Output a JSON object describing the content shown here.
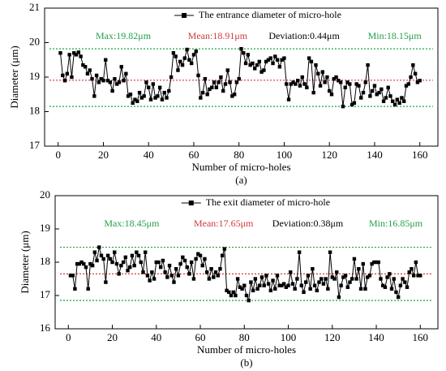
{
  "chart_data": [
    {
      "type": "line",
      "title": "The entrance diameter of micro-hole",
      "caption": "(a)",
      "x_label": "Number of micro-holes",
      "y_label": "Diameter (μm)",
      "xlim": [
        -6,
        168
      ],
      "xticks": [
        0,
        20,
        40,
        60,
        80,
        100,
        120,
        140,
        160
      ],
      "ylim": [
        17,
        21
      ],
      "yticks": [
        17,
        18,
        19,
        20,
        21
      ],
      "annotations": [
        {
          "text": "Max:19.82μm",
          "color": "#22a04a"
        },
        {
          "text": "Mean:18.91μm",
          "color": "#d03a3a"
        },
        {
          "text": "Deviation:0.44μm",
          "color": "#000000"
        },
        {
          "text": "Min:18.15μm",
          "color": "#22a04a"
        }
      ],
      "reference_lines": [
        {
          "value": 19.82,
          "color": "#22a04a"
        },
        {
          "value": 18.91,
          "color": "#d03a3a"
        },
        {
          "value": 18.15,
          "color": "#22a04a"
        }
      ],
      "x": [
        1,
        2,
        3,
        4,
        5,
        6,
        7,
        8,
        9,
        10,
        11,
        12,
        13,
        14,
        15,
        16,
        17,
        18,
        19,
        20,
        21,
        22,
        23,
        24,
        25,
        26,
        27,
        28,
        29,
        30,
        31,
        32,
        33,
        34,
        35,
        36,
        37,
        38,
        39,
        40,
        41,
        42,
        43,
        44,
        45,
        46,
        47,
        48,
        49,
        50,
        51,
        52,
        53,
        54,
        55,
        56,
        57,
        58,
        59,
        60,
        61,
        62,
        63,
        64,
        65,
        66,
        67,
        68,
        69,
        70,
        71,
        72,
        73,
        74,
        75,
        76,
        77,
        78,
        79,
        80,
        81,
        82,
        83,
        84,
        85,
        86,
        87,
        88,
        89,
        90,
        91,
        92,
        93,
        94,
        95,
        96,
        97,
        98,
        99,
        100,
        101,
        102,
        103,
        104,
        105,
        106,
        107,
        108,
        109,
        110,
        111,
        112,
        113,
        114,
        115,
        116,
        117,
        118,
        119,
        120,
        121,
        122,
        123,
        124,
        125,
        126,
        127,
        128,
        129,
        130,
        131,
        132,
        133,
        134,
        135,
        136,
        137,
        138,
        139,
        140,
        141,
        142,
        143,
        144,
        145,
        146,
        147,
        148,
        149,
        150,
        151,
        152,
        153,
        154,
        155,
        156,
        157,
        158,
        159,
        160
      ],
      "series": [
        {
          "name": "The entrance diameter of micro-hole",
          "color": "#000000",
          "values": [
            19.7,
            19.05,
            18.9,
            19.1,
            19.65,
            19.0,
            19.7,
            19.65,
            19.72,
            19.6,
            19.35,
            19.3,
            19.1,
            19.2,
            18.95,
            18.45,
            19.05,
            18.85,
            18.95,
            18.9,
            19.5,
            18.9,
            18.85,
            18.6,
            18.95,
            18.8,
            18.85,
            19.3,
            18.9,
            19.1,
            18.45,
            18.5,
            18.25,
            18.35,
            18.3,
            18.55,
            18.4,
            18.45,
            18.85,
            18.7,
            18.35,
            18.8,
            18.4,
            18.45,
            18.7,
            18.35,
            18.55,
            18.4,
            18.6,
            19.0,
            19.7,
            19.6,
            19.2,
            19.45,
            19.35,
            19.55,
            19.8,
            19.5,
            19.4,
            19.65,
            19.75,
            19.05,
            18.4,
            18.55,
            18.95,
            18.5,
            18.65,
            18.7,
            18.85,
            18.7,
            18.85,
            19.0,
            18.6,
            18.8,
            19.2,
            18.85,
            18.45,
            18.5,
            18.85,
            18.95,
            19.82,
            19.7,
            19.4,
            19.65,
            19.35,
            19.4,
            19.25,
            19.35,
            19.45,
            19.15,
            19.2,
            19.45,
            19.5,
            19.55,
            19.4,
            19.6,
            19.5,
            19.3,
            19.5,
            19.55,
            18.8,
            18.35,
            18.8,
            18.85,
            18.8,
            18.9,
            18.75,
            19.0,
            18.8,
            18.7,
            19.55,
            19.45,
            18.55,
            19.35,
            19.1,
            18.75,
            19.15,
            18.85,
            19.0,
            18.6,
            18.5,
            18.95,
            19.0,
            18.9,
            18.85,
            18.15,
            18.7,
            18.85,
            18.8,
            18.2,
            18.25,
            18.8,
            18.75,
            18.4,
            18.55,
            18.85,
            19.35,
            18.45,
            18.6,
            18.75,
            18.5,
            18.55,
            18.65,
            18.3,
            18.4,
            18.7,
            18.45,
            18.3,
            18.2,
            18.35,
            18.25,
            18.4,
            18.3,
            18.75,
            18.8,
            19.0,
            19.35,
            19.1,
            18.85,
            18.9
          ]
        }
      ]
    },
    {
      "type": "line",
      "title": "The exit diameter of micro-hole",
      "caption": "(b)",
      "x_label": "Number of micro-holes",
      "y_label": "Diameter (μm)",
      "xlim": [
        -6,
        168
      ],
      "xticks": [
        0,
        20,
        40,
        60,
        80,
        100,
        120,
        140,
        160
      ],
      "ylim": [
        16,
        20
      ],
      "yticks": [
        16,
        17,
        18,
        19,
        20
      ],
      "annotations": [
        {
          "text": "Max:18.45μm",
          "color": "#22a04a"
        },
        {
          "text": "Mean:17.65μm",
          "color": "#d03a3a"
        },
        {
          "text": "Deviation:0.38μm",
          "color": "#000000"
        },
        {
          "text": "Min:16.85μm",
          "color": "#22a04a"
        }
      ],
      "reference_lines": [
        {
          "value": 18.45,
          "color": "#22a04a"
        },
        {
          "value": 17.65,
          "color": "#d03a3a"
        },
        {
          "value": 16.85,
          "color": "#22a04a"
        }
      ],
      "x": [
        1,
        2,
        3,
        4,
        5,
        6,
        7,
        8,
        9,
        10,
        11,
        12,
        13,
        14,
        15,
        16,
        17,
        18,
        19,
        20,
        21,
        22,
        23,
        24,
        25,
        26,
        27,
        28,
        29,
        30,
        31,
        32,
        33,
        34,
        35,
        36,
        37,
        38,
        39,
        40,
        41,
        42,
        43,
        44,
        45,
        46,
        47,
        48,
        49,
        50,
        51,
        52,
        53,
        54,
        55,
        56,
        57,
        58,
        59,
        60,
        61,
        62,
        63,
        64,
        65,
        66,
        67,
        68,
        69,
        70,
        71,
        72,
        73,
        74,
        75,
        76,
        77,
        78,
        79,
        80,
        81,
        82,
        83,
        84,
        85,
        86,
        87,
        88,
        89,
        90,
        91,
        92,
        93,
        94,
        95,
        96,
        97,
        98,
        99,
        100,
        101,
        102,
        103,
        104,
        105,
        106,
        107,
        108,
        109,
        110,
        111,
        112,
        113,
        114,
        115,
        116,
        117,
        118,
        119,
        120,
        121,
        122,
        123,
        124,
        125,
        126,
        127,
        128,
        129,
        130,
        131,
        132,
        133,
        134,
        135,
        136,
        137,
        138,
        139,
        140,
        141,
        142,
        143,
        144,
        145,
        146,
        147,
        148,
        149,
        150,
        151,
        152,
        153,
        154,
        155,
        156,
        157,
        158,
        159,
        160
      ],
      "series": [
        {
          "name": "The exit diameter of micro-hole",
          "color": "#000000",
          "values": [
            17.6,
            17.6,
            17.2,
            17.95,
            17.95,
            18.0,
            17.95,
            17.85,
            17.2,
            17.95,
            17.9,
            18.3,
            18.05,
            18.45,
            18.2,
            18.1,
            17.4,
            18.2,
            18.1,
            18.0,
            18.3,
            17.95,
            17.65,
            17.9,
            18.0,
            18.15,
            17.75,
            17.85,
            18.2,
            17.9,
            18.3,
            18.2,
            18.0,
            17.7,
            18.3,
            17.6,
            17.45,
            17.7,
            17.5,
            18.0,
            18.0,
            17.85,
            18.05,
            17.7,
            17.55,
            17.9,
            17.6,
            17.4,
            17.8,
            17.6,
            17.95,
            18.15,
            18.05,
            17.85,
            17.65,
            18.0,
            17.5,
            18.1,
            18.25,
            18.2,
            17.9,
            18.1,
            17.7,
            17.5,
            17.8,
            17.55,
            17.7,
            17.6,
            17.8,
            18.2,
            18.4,
            17.15,
            17.1,
            17.0,
            17.1,
            17.0,
            17.5,
            17.25,
            17.2,
            17.3,
            17.0,
            16.85,
            17.4,
            17.15,
            17.5,
            17.2,
            17.3,
            17.55,
            17.3,
            17.6,
            17.35,
            17.15,
            17.45,
            17.2,
            17.6,
            17.3,
            17.3,
            17.35,
            17.25,
            17.3,
            17.7,
            17.35,
            17.2,
            17.5,
            18.3,
            17.3,
            17.1,
            17.4,
            17.6,
            17.2,
            17.8,
            17.3,
            17.15,
            17.4,
            17.5,
            17.35,
            17.5,
            17.2,
            18.3,
            17.55,
            17.5,
            17.7,
            16.95,
            17.3,
            17.55,
            17.6,
            17.25,
            17.4,
            17.5,
            18.1,
            17.5,
            17.8,
            17.2,
            17.95,
            17.2,
            17.55,
            17.6,
            17.95,
            18.0,
            18.0,
            18.0,
            17.5,
            17.3,
            17.25,
            17.55,
            17.65,
            17.2,
            17.5,
            17.1,
            16.95,
            17.3,
            17.5,
            17.4,
            17.25,
            17.7,
            17.8,
            17.6,
            18.0,
            17.6,
            17.6
          ]
        }
      ]
    }
  ]
}
